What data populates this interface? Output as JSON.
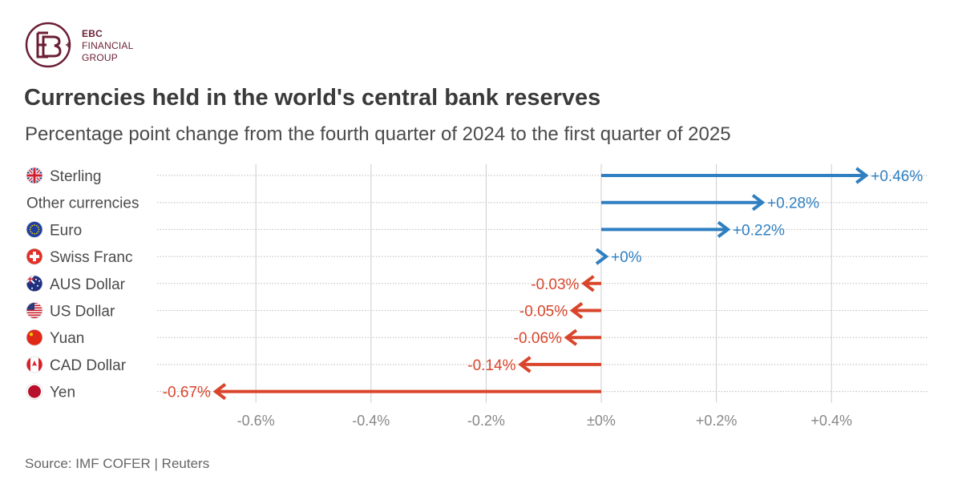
{
  "brand": {
    "name_line1": "EBC",
    "name_line2": "FINANCIAL",
    "name_line3": "GROUP",
    "color": "#6b1f34"
  },
  "header": {
    "title": "Currencies held in the world's central bank reserves",
    "subtitle": "Percentage point change from the fourth quarter of 2024 to the first quarter of 2025"
  },
  "footer": {
    "source": "Source: IMF COFER | Reuters"
  },
  "colors": {
    "positive": "#2f7fc1",
    "negative": "#d9452b",
    "grid": "#cccccc"
  },
  "chart_data": {
    "type": "bar",
    "title": "Currencies held in the world's central bank reserves",
    "subtitle": "Percentage point change from the fourth quarter of 2024 to the first quarter of 2025",
    "xlabel": "",
    "ylabel": "",
    "xlim": [
      -0.75,
      0.57
    ],
    "x_ticks": [
      -0.6,
      -0.4,
      -0.2,
      0,
      0.2,
      0.4
    ],
    "x_tick_labels": [
      "-0.6%",
      "-0.4%",
      "-0.2%",
      "±0%",
      "+0.2%",
      "+0.4%"
    ],
    "grid": "vertical",
    "orientation": "horizontal",
    "categories": [
      "Sterling",
      "Other currencies",
      "Euro",
      "Swiss Franc",
      "AUS Dollar",
      "US Dollar",
      "Yuan",
      "CAD Dollar",
      "Yen"
    ],
    "icons": [
      "uk-flag-icon",
      "",
      "eu-flag-icon",
      "swiss-flag-icon",
      "australia-flag-icon",
      "us-flag-icon",
      "china-flag-icon",
      "canada-flag-icon",
      "japan-flag-icon"
    ],
    "values": [
      0.46,
      0.28,
      0.22,
      0,
      -0.03,
      -0.05,
      -0.06,
      -0.14,
      -0.67
    ],
    "value_labels": [
      "+0.46%",
      "+0.28%",
      "+0.22%",
      "+0%",
      "-0.03%",
      "-0.05%",
      "-0.06%",
      "-0.14%",
      "-0.67%"
    ]
  }
}
